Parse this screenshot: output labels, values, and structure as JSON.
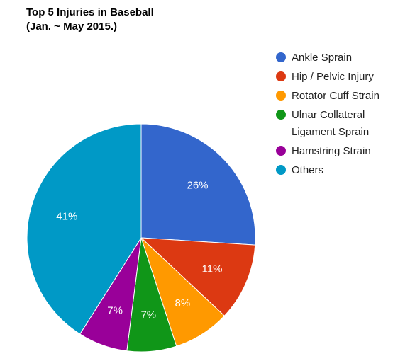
{
  "chart_data": {
    "type": "pie",
    "title": [
      "Top 5 Injuries in Baseball",
      "(Jan. ~ May 2015.)"
    ],
    "slices": [
      {
        "label": "Ankle Sprain",
        "value": 26,
        "display": "26%",
        "color": "#3366cc",
        "legend_lines": [
          "Ankle Sprain"
        ]
      },
      {
        "label": "Hip / Pelvic Injury",
        "value": 11,
        "display": "11%",
        "color": "#dc3912",
        "legend_lines": [
          "Hip / Pelvic Injury"
        ]
      },
      {
        "label": "Rotator Cuff Strain",
        "value": 8,
        "display": "8%",
        "color": "#ff9900",
        "legend_lines": [
          "Rotator Cuff Strain"
        ]
      },
      {
        "label": "Ulnar Collateral Ligament Sprain",
        "value": 7,
        "display": "7%",
        "color": "#109618",
        "legend_lines": [
          "Ulnar Collateral",
          "Ligament Sprain"
        ]
      },
      {
        "label": "Hamstring Strain",
        "value": 7,
        "display": "7%",
        "color": "#990099",
        "legend_lines": [
          "Hamstring Strain"
        ]
      },
      {
        "label": "Others",
        "value": 41,
        "display": "41%",
        "color": "#0099c6",
        "legend_lines": [
          "Others"
        ]
      }
    ],
    "start_angle": "12 o'clock",
    "direction": "clockwise",
    "legend_position": "right"
  }
}
